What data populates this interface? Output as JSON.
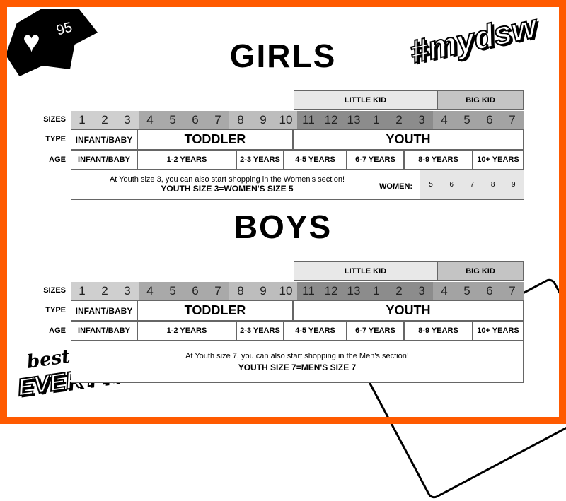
{
  "badge": {
    "likes": "95"
  },
  "hashtag": "#mydsw",
  "logo": {
    "line1": "best of",
    "line2": "EVERYTHING"
  },
  "size_cols": [
    "1",
    "2",
    "3",
    "4",
    "5",
    "6",
    "7",
    "8",
    "9",
    "10",
    "11",
    "12",
    "13",
    "1",
    "2",
    "3",
    "4",
    "5",
    "6",
    "7"
  ],
  "row_labels": {
    "sizes": "SIZES",
    "type": "TYPE",
    "age": "AGE"
  },
  "headers": {
    "little_kid": "LITTLE KID",
    "big_kid": "BIG KID"
  },
  "types": [
    "INFANT/BABY",
    "TODDLER",
    "YOUTH"
  ],
  "ages": [
    "INFANT/BABY",
    "1-2 YEARS",
    "2-3 YEARS",
    "4-5 YEARS",
    "6-7 YEARS",
    "8-9 YEARS",
    "10+ YEARS"
  ],
  "colors": {
    "border": "#ff5a00"
  },
  "girls": {
    "title": "GIRLS",
    "note": "At Youth size 3, you can also start shopping in the Women's section!",
    "note_bold": "YOUTH SIZE 3=WOMEN'S SIZE 5",
    "women_label": "WOMEN:",
    "women_sizes": [
      "5",
      "6",
      "7",
      "8",
      "9"
    ]
  },
  "boys": {
    "title": "BOYS",
    "note": "At Youth size 7, you can also start shopping in the Men's section!",
    "note_bold": "YOUTH SIZE 7=MEN'S SIZE 7"
  }
}
